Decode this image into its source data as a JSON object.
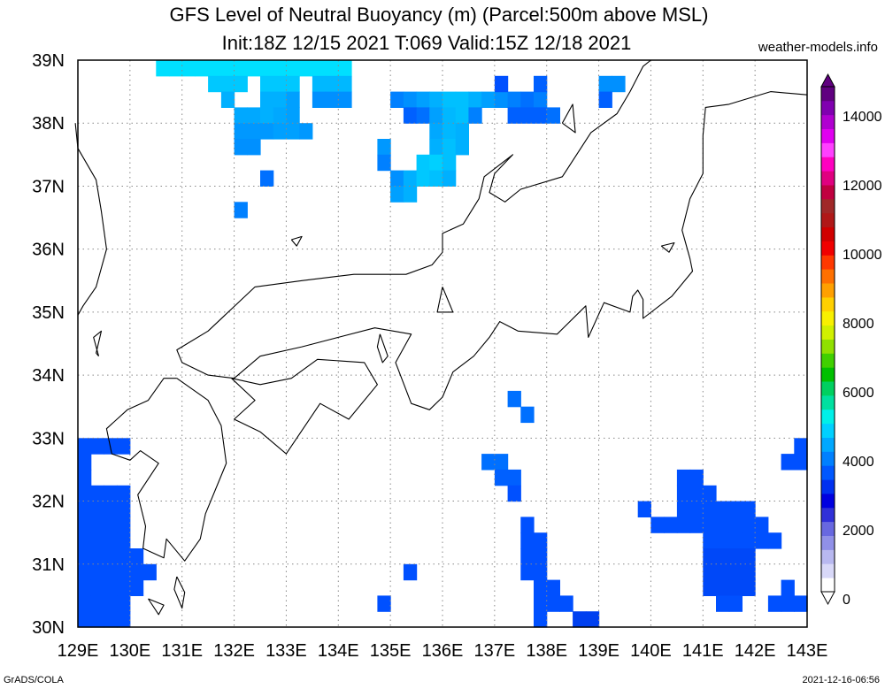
{
  "header": {
    "title_line1": "GFS Level of Neutral Buoyancy (m) (Parcel:500m above MSL)",
    "title_line2": "Init:18Z 12/15 2021 T:069 Valid:15Z 12/18 2021",
    "site": "weather-models.info"
  },
  "footer": {
    "left": "GrADS/COLA",
    "right": "2021-12-16-06:56"
  },
  "map": {
    "lon_range": [
      129,
      143
    ],
    "lat_range": [
      30,
      39
    ],
    "x_ticks": [
      "129E",
      "130E",
      "131E",
      "132E",
      "133E",
      "134E",
      "135E",
      "136E",
      "137E",
      "138E",
      "139E",
      "140E",
      "141E",
      "142E",
      "143E"
    ],
    "y_ticks": [
      "30N",
      "31N",
      "32N",
      "33N",
      "34N",
      "35N",
      "36N",
      "37N",
      "38N",
      "39N"
    ],
    "grid": "dotted",
    "colorbar": {
      "labels": [
        "0",
        "2000",
        "4000",
        "6000",
        "8000",
        "10000",
        "12000",
        "14000"
      ],
      "colors": [
        "#ffffff",
        "#d8d8f8",
        "#b8b8f0",
        "#9090e8",
        "#6868e0",
        "#3030d8",
        "#0000e0",
        "#0030f0",
        "#0058ff",
        "#0080ff",
        "#00a8ff",
        "#00d0ff",
        "#00f0e8",
        "#00e0a0",
        "#00d060",
        "#00c000",
        "#40d000",
        "#90e000",
        "#d0f000",
        "#f8f000",
        "#ffd000",
        "#ffa000",
        "#ff7000",
        "#ff3800",
        "#f00000",
        "#d00000",
        "#b01818",
        "#a02828",
        "#c00040",
        "#e00080",
        "#ff00c0",
        "#ff40ff",
        "#e000f0",
        "#b000d0",
        "#8000b0",
        "#600080"
      ]
    },
    "cells": [
      {
        "lon": 130.5,
        "lat": 38.75,
        "c": "#00dfff"
      },
      {
        "lon": 130.75,
        "lat": 38.75,
        "c": "#00dfff"
      },
      {
        "lon": 131.0,
        "lat": 38.75,
        "c": "#00dfff"
      },
      {
        "lon": 131.25,
        "lat": 38.75,
        "c": "#00dfff"
      },
      {
        "lon": 131.5,
        "lat": 38.75,
        "c": "#00dfff"
      },
      {
        "lon": 131.75,
        "lat": 38.75,
        "c": "#00dfff"
      },
      {
        "lon": 132.0,
        "lat": 38.75,
        "c": "#00dfff"
      },
      {
        "lon": 132.25,
        "lat": 38.75,
        "c": "#00dfff"
      },
      {
        "lon": 132.5,
        "lat": 38.75,
        "c": "#00dfff"
      },
      {
        "lon": 132.75,
        "lat": 38.75,
        "c": "#00dfff"
      },
      {
        "lon": 133.0,
        "lat": 38.75,
        "c": "#00dfff"
      },
      {
        "lon": 133.25,
        "lat": 38.75,
        "c": "#00dfff"
      },
      {
        "lon": 133.5,
        "lat": 38.75,
        "c": "#00dfff"
      },
      {
        "lon": 133.75,
        "lat": 38.75,
        "c": "#00dfff"
      },
      {
        "lon": 134.0,
        "lat": 38.75,
        "c": "#00dfff"
      },
      {
        "lon": 131.5,
        "lat": 38.5,
        "c": "#00c8ff"
      },
      {
        "lon": 131.75,
        "lat": 38.5,
        "c": "#00c8ff"
      },
      {
        "lon": 132.0,
        "lat": 38.5,
        "c": "#00c8ff"
      },
      {
        "lon": 132.5,
        "lat": 38.5,
        "c": "#00c8ff"
      },
      {
        "lon": 132.75,
        "lat": 38.5,
        "c": "#00c8ff"
      },
      {
        "lon": 133.0,
        "lat": 38.5,
        "c": "#00c8ff"
      },
      {
        "lon": 133.5,
        "lat": 38.5,
        "c": "#00b8ff"
      },
      {
        "lon": 133.75,
        "lat": 38.5,
        "c": "#00b8ff"
      },
      {
        "lon": 134.0,
        "lat": 38.5,
        "c": "#00b8ff"
      },
      {
        "lon": 131.75,
        "lat": 38.25,
        "c": "#00b0ff"
      },
      {
        "lon": 132.5,
        "lat": 38.25,
        "c": "#00b0ff"
      },
      {
        "lon": 132.75,
        "lat": 38.25,
        "c": "#00b0ff"
      },
      {
        "lon": 133.0,
        "lat": 38.25,
        "c": "#00a0ff"
      },
      {
        "lon": 133.5,
        "lat": 38.25,
        "c": "#0090ff"
      },
      {
        "lon": 133.75,
        "lat": 38.25,
        "c": "#0090ff"
      },
      {
        "lon": 134.0,
        "lat": 38.25,
        "c": "#0090ff"
      },
      {
        "lon": 132.0,
        "lat": 38.0,
        "c": "#00a8ff"
      },
      {
        "lon": 132.25,
        "lat": 38.0,
        "c": "#00a8ff"
      },
      {
        "lon": 132.5,
        "lat": 38.0,
        "c": "#00b0ff"
      },
      {
        "lon": 132.75,
        "lat": 38.0,
        "c": "#00a8ff"
      },
      {
        "lon": 133.0,
        "lat": 38.0,
        "c": "#00a0ff"
      },
      {
        "lon": 132.0,
        "lat": 37.75,
        "c": "#0098ff"
      },
      {
        "lon": 132.25,
        "lat": 37.75,
        "c": "#0098ff"
      },
      {
        "lon": 132.5,
        "lat": 37.75,
        "c": "#0098ff"
      },
      {
        "lon": 132.75,
        "lat": 37.75,
        "c": "#00a0ff"
      },
      {
        "lon": 133.0,
        "lat": 37.75,
        "c": "#00a0ff"
      },
      {
        "lon": 133.25,
        "lat": 37.75,
        "c": "#0098ff"
      },
      {
        "lon": 132.0,
        "lat": 37.5,
        "c": "#0090ff"
      },
      {
        "lon": 132.25,
        "lat": 37.5,
        "c": "#0090ff"
      },
      {
        "lon": 132.5,
        "lat": 37.0,
        "c": "#0070ff"
      },
      {
        "lon": 132.0,
        "lat": 36.5,
        "c": "#0080ff"
      },
      {
        "lon": 134.75,
        "lat": 37.5,
        "c": "#0098ff"
      },
      {
        "lon": 134.75,
        "lat": 37.25,
        "c": "#0080ff"
      },
      {
        "lon": 135.0,
        "lat": 38.25,
        "c": "#0080ff"
      },
      {
        "lon": 135.25,
        "lat": 38.25,
        "c": "#0090ff"
      },
      {
        "lon": 135.5,
        "lat": 38.25,
        "c": "#00a0ff"
      },
      {
        "lon": 135.75,
        "lat": 38.25,
        "c": "#00b0ff"
      },
      {
        "lon": 136.0,
        "lat": 38.25,
        "c": "#00c0ff"
      },
      {
        "lon": 136.25,
        "lat": 38.25,
        "c": "#00c0ff"
      },
      {
        "lon": 136.5,
        "lat": 38.25,
        "c": "#00b0ff"
      },
      {
        "lon": 136.75,
        "lat": 38.25,
        "c": "#00a0ff"
      },
      {
        "lon": 137.0,
        "lat": 38.25,
        "c": "#0090ff"
      },
      {
        "lon": 137.25,
        "lat": 38.25,
        "c": "#0080ff"
      },
      {
        "lon": 137.5,
        "lat": 38.25,
        "c": "#0070ff"
      },
      {
        "lon": 137.75,
        "lat": 38.25,
        "c": "#0080ff"
      },
      {
        "lon": 137.75,
        "lat": 38.5,
        "c": "#0060ff"
      },
      {
        "lon": 137.0,
        "lat": 38.5,
        "c": "#0050ff"
      },
      {
        "lon": 135.25,
        "lat": 38.0,
        "c": "#0060ff"
      },
      {
        "lon": 135.5,
        "lat": 38.0,
        "c": "#0070ff"
      },
      {
        "lon": 135.75,
        "lat": 38.0,
        "c": "#00a0ff"
      },
      {
        "lon": 136.0,
        "lat": 38.0,
        "c": "#00b8ff"
      },
      {
        "lon": 136.25,
        "lat": 38.0,
        "c": "#00c0ff"
      },
      {
        "lon": 136.5,
        "lat": 38.0,
        "c": "#0080ff"
      },
      {
        "lon": 137.25,
        "lat": 38.0,
        "c": "#0060ff"
      },
      {
        "lon": 137.5,
        "lat": 38.0,
        "c": "#0060ff"
      },
      {
        "lon": 137.75,
        "lat": 38.0,
        "c": "#0060ff"
      },
      {
        "lon": 138.0,
        "lat": 38.0,
        "c": "#0070ff"
      },
      {
        "lon": 135.75,
        "lat": 37.75,
        "c": "#00a8ff"
      },
      {
        "lon": 136.0,
        "lat": 37.75,
        "c": "#00b8ff"
      },
      {
        "lon": 136.25,
        "lat": 37.75,
        "c": "#00b0ff"
      },
      {
        "lon": 135.75,
        "lat": 37.5,
        "c": "#00b0ff"
      },
      {
        "lon": 136.0,
        "lat": 37.5,
        "c": "#00c0ff"
      },
      {
        "lon": 136.25,
        "lat": 37.5,
        "c": "#00b0ff"
      },
      {
        "lon": 135.5,
        "lat": 37.25,
        "c": "#00c8ff"
      },
      {
        "lon": 135.75,
        "lat": 37.25,
        "c": "#00d0ff"
      },
      {
        "lon": 136.0,
        "lat": 37.25,
        "c": "#00c0ff"
      },
      {
        "lon": 135.0,
        "lat": 37.0,
        "c": "#0090ff"
      },
      {
        "lon": 135.25,
        "lat": 37.0,
        "c": "#00b0ff"
      },
      {
        "lon": 135.5,
        "lat": 37.0,
        "c": "#00c8ff"
      },
      {
        "lon": 135.75,
        "lat": 37.0,
        "c": "#00c0ff"
      },
      {
        "lon": 136.0,
        "lat": 37.0,
        "c": "#00b0ff"
      },
      {
        "lon": 135.0,
        "lat": 36.75,
        "c": "#00a0ff"
      },
      {
        "lon": 135.25,
        "lat": 36.75,
        "c": "#00b0ff"
      },
      {
        "lon": 139.0,
        "lat": 38.5,
        "c": "#0090ff"
      },
      {
        "lon": 139.25,
        "lat": 38.5,
        "c": "#0090ff"
      },
      {
        "lon": 139.0,
        "lat": 38.25,
        "c": "#0060ff"
      },
      {
        "lon": 129.0,
        "lat": 32.75,
        "c": "#0050ff"
      },
      {
        "lon": 129.25,
        "lat": 32.75,
        "c": "#0050ff"
      },
      {
        "lon": 129.5,
        "lat": 32.75,
        "c": "#0050ff"
      },
      {
        "lon": 129.75,
        "lat": 32.75,
        "c": "#0050ff"
      },
      {
        "lon": 129.0,
        "lat": 32.5,
        "c": "#0050ff"
      },
      {
        "lon": 129.0,
        "lat": 32.25,
        "c": "#0050ff"
      },
      {
        "lon": 129.0,
        "lat": 32.0,
        "c": "#0050ff"
      },
      {
        "lon": 129.25,
        "lat": 32.0,
        "c": "#0050ff"
      },
      {
        "lon": 129.5,
        "lat": 32.0,
        "c": "#0050ff"
      },
      {
        "lon": 129.75,
        "lat": 32.0,
        "c": "#0050ff"
      },
      {
        "lon": 129.0,
        "lat": 31.75,
        "c": "#0050ff"
      },
      {
        "lon": 129.25,
        "lat": 31.75,
        "c": "#0050ff"
      },
      {
        "lon": 129.5,
        "lat": 31.75,
        "c": "#0050ff"
      },
      {
        "lon": 129.75,
        "lat": 31.75,
        "c": "#0050ff"
      },
      {
        "lon": 129.0,
        "lat": 31.5,
        "c": "#0050ff"
      },
      {
        "lon": 129.25,
        "lat": 31.5,
        "c": "#0050ff"
      },
      {
        "lon": 129.5,
        "lat": 31.5,
        "c": "#0050ff"
      },
      {
        "lon": 129.75,
        "lat": 31.5,
        "c": "#0050ff"
      },
      {
        "lon": 129.0,
        "lat": 31.25,
        "c": "#0050ff"
      },
      {
        "lon": 129.25,
        "lat": 31.25,
        "c": "#0050ff"
      },
      {
        "lon": 129.5,
        "lat": 31.25,
        "c": "#0050ff"
      },
      {
        "lon": 129.75,
        "lat": 31.25,
        "c": "#0050ff"
      },
      {
        "lon": 129.0,
        "lat": 31.0,
        "c": "#0050ff"
      },
      {
        "lon": 129.25,
        "lat": 31.0,
        "c": "#0050ff"
      },
      {
        "lon": 129.5,
        "lat": 31.0,
        "c": "#0050ff"
      },
      {
        "lon": 129.75,
        "lat": 31.0,
        "c": "#0050ff"
      },
      {
        "lon": 130.0,
        "lat": 31.0,
        "c": "#0050ff"
      },
      {
        "lon": 129.0,
        "lat": 30.75,
        "c": "#0050ff"
      },
      {
        "lon": 129.25,
        "lat": 30.75,
        "c": "#0050ff"
      },
      {
        "lon": 129.5,
        "lat": 30.75,
        "c": "#0050ff"
      },
      {
        "lon": 129.75,
        "lat": 30.75,
        "c": "#0050ff"
      },
      {
        "lon": 130.0,
        "lat": 30.75,
        "c": "#0050ff"
      },
      {
        "lon": 130.25,
        "lat": 30.75,
        "c": "#0050ff"
      },
      {
        "lon": 129.0,
        "lat": 30.5,
        "c": "#0050ff"
      },
      {
        "lon": 129.25,
        "lat": 30.5,
        "c": "#0050ff"
      },
      {
        "lon": 129.5,
        "lat": 30.5,
        "c": "#0050ff"
      },
      {
        "lon": 129.75,
        "lat": 30.5,
        "c": "#0050ff"
      },
      {
        "lon": 130.0,
        "lat": 30.5,
        "c": "#0050ff"
      },
      {
        "lon": 129.0,
        "lat": 30.25,
        "c": "#0050ff"
      },
      {
        "lon": 129.25,
        "lat": 30.25,
        "c": "#0050ff"
      },
      {
        "lon": 129.5,
        "lat": 30.25,
        "c": "#0050ff"
      },
      {
        "lon": 129.75,
        "lat": 30.25,
        "c": "#0050ff"
      },
      {
        "lon": 129.0,
        "lat": 30.0,
        "c": "#0050ff"
      },
      {
        "lon": 129.25,
        "lat": 30.0,
        "c": "#0050ff"
      },
      {
        "lon": 129.5,
        "lat": 30.0,
        "c": "#0050ff"
      },
      {
        "lon": 129.75,
        "lat": 30.0,
        "c": "#0050ff"
      },
      {
        "lon": 135.25,
        "lat": 30.75,
        "c": "#0050ff"
      },
      {
        "lon": 134.75,
        "lat": 30.25,
        "c": "#0050ff"
      },
      {
        "lon": 137.25,
        "lat": 33.5,
        "c": "#0070ff"
      },
      {
        "lon": 137.5,
        "lat": 33.25,
        "c": "#0070ff"
      },
      {
        "lon": 136.75,
        "lat": 32.5,
        "c": "#0070ff"
      },
      {
        "lon": 137.0,
        "lat": 32.5,
        "c": "#0070ff"
      },
      {
        "lon": 137.0,
        "lat": 32.25,
        "c": "#0060ff"
      },
      {
        "lon": 137.25,
        "lat": 32.25,
        "c": "#0060ff"
      },
      {
        "lon": 137.25,
        "lat": 32.0,
        "c": "#0050ff"
      },
      {
        "lon": 137.5,
        "lat": 31.5,
        "c": "#0050ff"
      },
      {
        "lon": 137.5,
        "lat": 31.25,
        "c": "#0050ff"
      },
      {
        "lon": 137.75,
        "lat": 31.25,
        "c": "#0050ff"
      },
      {
        "lon": 137.5,
        "lat": 31.0,
        "c": "#0050ff"
      },
      {
        "lon": 137.75,
        "lat": 31.0,
        "c": "#0050ff"
      },
      {
        "lon": 137.5,
        "lat": 30.75,
        "c": "#0050ff"
      },
      {
        "lon": 137.75,
        "lat": 30.75,
        "c": "#0050ff"
      },
      {
        "lon": 137.75,
        "lat": 30.5,
        "c": "#0050ff"
      },
      {
        "lon": 138.0,
        "lat": 30.5,
        "c": "#0050ff"
      },
      {
        "lon": 137.75,
        "lat": 30.25,
        "c": "#0050ff"
      },
      {
        "lon": 138.0,
        "lat": 30.25,
        "c": "#0050ff"
      },
      {
        "lon": 138.25,
        "lat": 30.25,
        "c": "#0050ff"
      },
      {
        "lon": 137.75,
        "lat": 30.0,
        "c": "#0050ff"
      },
      {
        "lon": 138.5,
        "lat": 30.0,
        "c": "#0040f0"
      },
      {
        "lon": 138.75,
        "lat": 30.0,
        "c": "#0040f0"
      },
      {
        "lon": 139.75,
        "lat": 31.75,
        "c": "#0050ff"
      },
      {
        "lon": 140.0,
        "lat": 31.5,
        "c": "#0050ff"
      },
      {
        "lon": 140.25,
        "lat": 31.5,
        "c": "#0050ff"
      },
      {
        "lon": 140.5,
        "lat": 31.5,
        "c": "#0050ff"
      },
      {
        "lon": 140.75,
        "lat": 31.5,
        "c": "#0050ff"
      },
      {
        "lon": 140.5,
        "lat": 32.25,
        "c": "#0050ff"
      },
      {
        "lon": 140.75,
        "lat": 32.25,
        "c": "#0050ff"
      },
      {
        "lon": 140.5,
        "lat": 32.0,
        "c": "#0050ff"
      },
      {
        "lon": 140.75,
        "lat": 32.0,
        "c": "#0050ff"
      },
      {
        "lon": 141.0,
        "lat": 32.0,
        "c": "#0050ff"
      },
      {
        "lon": 140.5,
        "lat": 31.75,
        "c": "#0050ff"
      },
      {
        "lon": 140.75,
        "lat": 31.75,
        "c": "#0050ff"
      },
      {
        "lon": 141.0,
        "lat": 31.75,
        "c": "#0050ff"
      },
      {
        "lon": 141.25,
        "lat": 31.75,
        "c": "#0050ff"
      },
      {
        "lon": 141.5,
        "lat": 31.75,
        "c": "#0050ff"
      },
      {
        "lon": 141.75,
        "lat": 31.75,
        "c": "#0050ff"
      },
      {
        "lon": 141.0,
        "lat": 31.5,
        "c": "#0050ff"
      },
      {
        "lon": 141.25,
        "lat": 31.5,
        "c": "#0050ff"
      },
      {
        "lon": 141.5,
        "lat": 31.5,
        "c": "#0050ff"
      },
      {
        "lon": 141.75,
        "lat": 31.5,
        "c": "#0050ff"
      },
      {
        "lon": 142.0,
        "lat": 31.5,
        "c": "#0050ff"
      },
      {
        "lon": 141.0,
        "lat": 31.25,
        "c": "#0050ff"
      },
      {
        "lon": 141.25,
        "lat": 31.25,
        "c": "#0050ff"
      },
      {
        "lon": 141.5,
        "lat": 31.25,
        "c": "#0050ff"
      },
      {
        "lon": 141.75,
        "lat": 31.25,
        "c": "#0050ff"
      },
      {
        "lon": 142.0,
        "lat": 31.25,
        "c": "#0050ff"
      },
      {
        "lon": 142.25,
        "lat": 31.25,
        "c": "#0050ff"
      },
      {
        "lon": 141.0,
        "lat": 31.0,
        "c": "#0048f8"
      },
      {
        "lon": 141.25,
        "lat": 31.0,
        "c": "#0048f8"
      },
      {
        "lon": 141.5,
        "lat": 31.0,
        "c": "#0048f8"
      },
      {
        "lon": 141.75,
        "lat": 31.0,
        "c": "#0048f8"
      },
      {
        "lon": 141.0,
        "lat": 30.75,
        "c": "#0048f8"
      },
      {
        "lon": 141.25,
        "lat": 30.75,
        "c": "#0048f8"
      },
      {
        "lon": 141.5,
        "lat": 30.75,
        "c": "#0048f8"
      },
      {
        "lon": 141.75,
        "lat": 30.75,
        "c": "#0048f8"
      },
      {
        "lon": 141.0,
        "lat": 30.5,
        "c": "#0048f8"
      },
      {
        "lon": 141.25,
        "lat": 30.5,
        "c": "#0048f8"
      },
      {
        "lon": 141.5,
        "lat": 30.5,
        "c": "#0048f8"
      },
      {
        "lon": 141.75,
        "lat": 30.5,
        "c": "#0048f8"
      },
      {
        "lon": 141.25,
        "lat": 30.25,
        "c": "#0050ff"
      },
      {
        "lon": 141.5,
        "lat": 30.25,
        "c": "#0050ff"
      },
      {
        "lon": 142.5,
        "lat": 30.5,
        "c": "#0050ff"
      },
      {
        "lon": 142.25,
        "lat": 30.25,
        "c": "#0050ff"
      },
      {
        "lon": 142.5,
        "lat": 30.25,
        "c": "#0050ff"
      },
      {
        "lon": 142.75,
        "lat": 30.25,
        "c": "#0050ff"
      },
      {
        "lon": 142.75,
        "lat": 32.75,
        "c": "#0050ff"
      },
      {
        "lon": 142.5,
        "lat": 32.5,
        "c": "#0050ff"
      },
      {
        "lon": 142.75,
        "lat": 32.5,
        "c": "#0050ff"
      }
    ]
  }
}
